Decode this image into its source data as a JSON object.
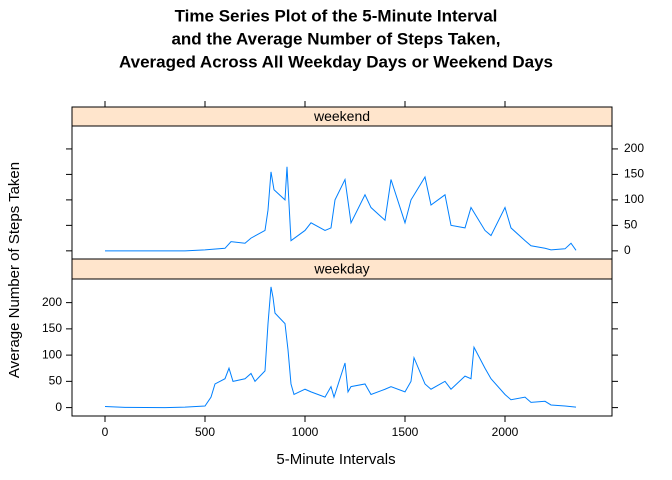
{
  "chart_data": {
    "type": "line",
    "title": [
      "Time Series Plot of the 5-Minute Interval",
      "and the Average Number of Steps Taken,",
      "Averaged Across All Weekday Days or Weekend Days"
    ],
    "xlabel": "5-Minute Intervals",
    "ylabel": "Average Number of Steps Taken",
    "xlim": [
      -165,
      2535
    ],
    "xticks": [
      0,
      500,
      1000,
      1500,
      2000
    ],
    "ylim": [
      -16,
      245
    ],
    "yticks": [
      0,
      50,
      100,
      150,
      200
    ],
    "color": "#0080ff",
    "strip_color": "#ffe5cc",
    "panels": [
      {
        "name": "weekend",
        "x": [
          0,
          100,
          200,
          300,
          400,
          500,
          530,
          600,
          630,
          700,
          730,
          800,
          815,
          830,
          845,
          900,
          910,
          930,
          1000,
          1030,
          1100,
          1130,
          1150,
          1200,
          1230,
          1300,
          1330,
          1400,
          1430,
          1500,
          1530,
          1600,
          1630,
          1700,
          1730,
          1800,
          1830,
          1900,
          1930,
          2000,
          2030,
          2100,
          2130,
          2200,
          2230,
          2300,
          2330,
          2355
        ],
        "values": [
          0,
          0,
          0,
          0,
          0,
          2,
          3,
          5,
          18,
          15,
          25,
          40,
          80,
          155,
          120,
          100,
          165,
          20,
          40,
          55,
          40,
          45,
          100,
          140,
          55,
          110,
          85,
          60,
          140,
          55,
          100,
          145,
          90,
          110,
          50,
          45,
          85,
          40,
          30,
          85,
          45,
          20,
          10,
          5,
          2,
          4,
          15,
          1
        ]
      },
      {
        "name": "weekday",
        "x": [
          0,
          100,
          200,
          300,
          400,
          500,
          530,
          550,
          600,
          620,
          640,
          700,
          730,
          750,
          800,
          815,
          830,
          840,
          850,
          900,
          915,
          930,
          945,
          1000,
          1030,
          1100,
          1130,
          1145,
          1200,
          1215,
          1230,
          1300,
          1330,
          1400,
          1430,
          1500,
          1530,
          1545,
          1600,
          1630,
          1700,
          1730,
          1800,
          1830,
          1845,
          1900,
          1930,
          2000,
          2030,
          2100,
          2130,
          2200,
          2230,
          2300,
          2355
        ],
        "values": [
          2,
          0.5,
          0.3,
          0,
          1,
          3,
          20,
          45,
          55,
          75,
          50,
          55,
          65,
          50,
          70,
          160,
          230,
          210,
          180,
          160,
          110,
          45,
          25,
          35,
          30,
          20,
          40,
          20,
          85,
          30,
          40,
          45,
          25,
          35,
          40,
          30,
          50,
          95,
          45,
          35,
          50,
          35,
          60,
          55,
          115,
          75,
          55,
          25,
          15,
          20,
          10,
          12,
          5,
          3,
          1
        ]
      }
    ]
  }
}
